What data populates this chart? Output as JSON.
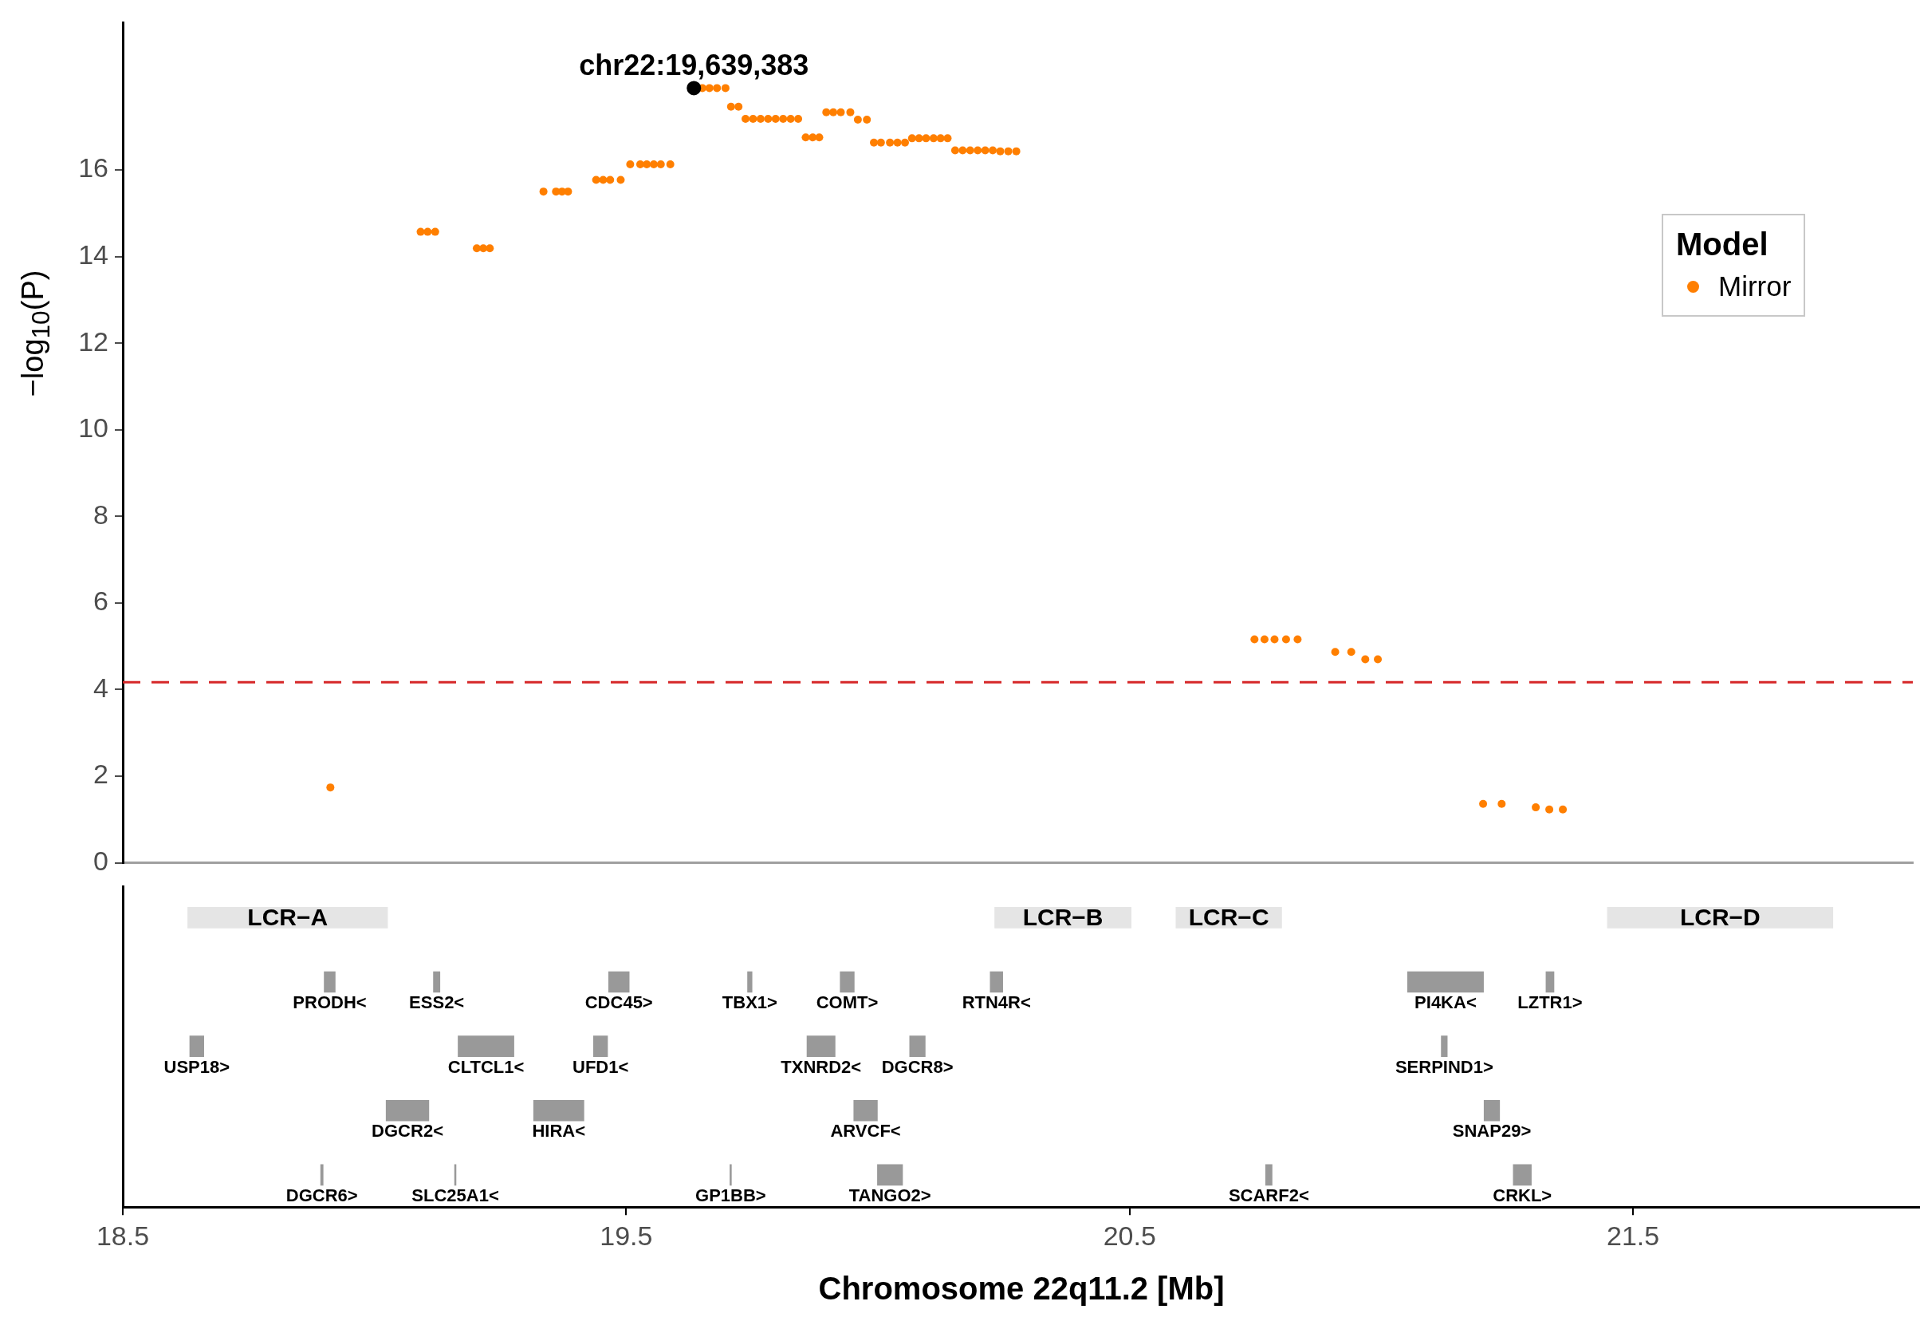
{
  "chart_data": [
    {
      "type": "scatter",
      "ylabel": "−log$_{10}$(P)",
      "legend_title": "Model",
      "legend": "top right",
      "grid": false,
      "marker": "circle",
      "tick_labels": "y",
      "xlim": [
        18.5,
        22.07
      ],
      "ylim": [
        0,
        19.4
      ],
      "yticks": [
        0,
        2,
        4,
        6,
        8,
        10,
        12,
        14,
        16
      ],
      "series": [
        {
          "name": "Mirror",
          "color": "#ff7f00",
          "x": [
            18.914,
            19.094,
            19.108,
            19.123,
            19.206,
            19.219,
            19.232,
            19.339,
            19.364,
            19.376,
            19.388,
            19.444,
            19.458,
            19.472,
            19.493,
            19.512,
            19.532,
            19.545,
            19.559,
            19.573,
            19.592,
            19.656,
            19.67,
            19.685,
            19.702,
            19.713,
            19.728,
            19.742,
            19.757,
            19.772,
            19.787,
            19.802,
            19.817,
            19.832,
            19.847,
            19.862,
            19.876,
            19.889,
            19.903,
            19.917,
            19.932,
            19.951,
            19.966,
            19.984,
            19.998,
            20.012,
            20.03,
            20.045,
            20.06,
            20.074,
            20.088,
            20.102,
            20.117,
            20.131,
            20.145,
            20.16,
            20.175,
            20.19,
            20.205,
            20.22,
            20.235,
            20.25,
            20.266,
            20.282,
            20.757,
            20.777,
            20.797,
            20.82,
            20.843,
            20.918,
            20.95,
            20.978,
            21.003,
            21.213,
            21.25,
            21.318,
            21.345,
            21.372
          ],
          "values": [
            1.74,
            14.57,
            14.57,
            14.57,
            14.19,
            14.19,
            14.19,
            15.5,
            15.5,
            15.5,
            15.5,
            15.77,
            15.77,
            15.77,
            15.77,
            16.13,
            16.13,
            16.13,
            16.13,
            16.13,
            16.13,
            17.89,
            17.89,
            17.89,
            17.89,
            17.46,
            17.46,
            17.18,
            17.18,
            17.18,
            17.18,
            17.18,
            17.18,
            17.18,
            17.18,
            16.75,
            16.75,
            16.75,
            17.33,
            17.33,
            17.33,
            17.33,
            17.16,
            17.16,
            16.63,
            16.63,
            16.63,
            16.63,
            16.63,
            16.73,
            16.73,
            16.73,
            16.73,
            16.73,
            16.73,
            16.45,
            16.45,
            16.45,
            16.45,
            16.45,
            16.45,
            16.43,
            16.43,
            16.43,
            5.16,
            5.16,
            5.16,
            5.16,
            5.16,
            4.87,
            4.87,
            4.7,
            4.7,
            1.36,
            1.36,
            1.28,
            1.23,
            1.23
          ]
        },
        {
          "color": "#000000",
          "x": [
            19.639
          ],
          "values": [
            17.89
          ]
        }
      ],
      "ref_lines": [
        {
          "axis": "y",
          "value": 4.17,
          "color": "#d62728",
          "line_style": "dashed"
        }
      ],
      "annotations": [
        {
          "text": "chr22:19,639,383",
          "x": 19.639,
          "y": 17.89
        }
      ]
    },
    {
      "type": "bar",
      "orientation": "horizontal",
      "xlabel": "Chromosome 22q11.2 [Mb]",
      "tick_labels": "x",
      "grid": false,
      "xlim": [
        18.5,
        22.07
      ],
      "xticks": [
        18.5,
        19.5,
        20.5,
        21.5
      ],
      "categories": [
        null,
        null,
        null,
        null,
        null
      ],
      "series": [
        {
          "colors": [
            "#e5e5e5",
            "#999999",
            "#999999",
            "#999999",
            "#999999"
          ],
          "base": [
            18.629,
            18.9,
            18.633,
            19.023,
            18.893
          ],
          "values": [
            0.397,
            0.022,
            0.028,
            0.085,
            0.005
          ],
          "value_labels": [
            "LCR−A",
            "PRODH<",
            "USP18>",
            "DGCR2<",
            "DGCR6>"
          ]
        },
        {
          "colors": [
            "#e5e5e5",
            "#999999",
            "#999999",
            "#999999",
            "#999999"
          ],
          "base": [
            20.232,
            19.117,
            19.166,
            19.316,
            19.159
          ],
          "values": [
            0.271,
            0.013,
            0.111,
            0.1,
            0.003
          ],
          "value_labels": [
            "LCR−B",
            "ESS2<",
            "CLTCL1<",
            "HIRA<",
            "SLC25A1<"
          ]
        },
        {
          "colors": [
            "#e5e5e5",
            "#999999",
            "#999999",
            "#999999",
            "#999999"
          ],
          "base": [
            20.592,
            19.465,
            19.435,
            19.952,
            19.706
          ],
          "values": [
            0.21,
            0.041,
            0.028,
            0.047,
            0.003
          ],
          "value_labels": [
            "LCR−C",
            "CDC45>",
            "UFD1<",
            "ARVCF<",
            "GP1BB>"
          ]
        },
        {
          "colors": [
            "#e5e5e5",
            "#999999",
            "#999999",
            "#999999",
            "#999999"
          ],
          "base": [
            21.449,
            19.741,
            19.859,
            21.204,
            19.999
          ],
          "values": [
            0.448,
            0.009,
            0.056,
            0.031,
            0.05
          ],
          "value_labels": [
            "LCR−D",
            "TBX1>",
            "TXNRD2<",
            "SNAP29>",
            "TANGO2>"
          ]
        },
        {
          "colors": [
            null,
            "#999999",
            "#999999",
            null,
            "#999999"
          ],
          "base": [
            null,
            19.925,
            20.063,
            null,
            20.77
          ],
          "values": [
            null,
            0.028,
            0.031,
            null,
            0.013
          ],
          "value_labels": [
            null,
            "COMT>",
            "DGCR8>",
            null,
            "SCARF2<"
          ]
        },
        {
          "colors": [
            null,
            "#999999",
            "#999999",
            null,
            "#999999"
          ],
          "base": [
            null,
            20.223,
            21.119,
            null,
            21.262
          ],
          "values": [
            null,
            0.025,
            0.012,
            null,
            0.036
          ],
          "value_labels": [
            null,
            "RTN4R<",
            "SERPIND1>",
            null,
            "CRKL>"
          ]
        },
        {
          "colors": [
            null,
            "#999999",
            null,
            null,
            null
          ],
          "base": [
            null,
            21.052,
            null,
            null,
            null
          ],
          "values": [
            null,
            0.151,
            null,
            null,
            null
          ],
          "value_labels": [
            null,
            "PI4KA<",
            null,
            null,
            null
          ]
        },
        {
          "colors": [
            null,
            "#999999",
            null,
            null,
            null
          ],
          "base": [
            null,
            21.327,
            null,
            null,
            null
          ],
          "values": [
            null,
            0.016,
            null,
            null,
            null
          ],
          "value_labels": [
            null,
            "LZTR1>",
            null,
            null,
            null
          ]
        }
      ]
    }
  ]
}
